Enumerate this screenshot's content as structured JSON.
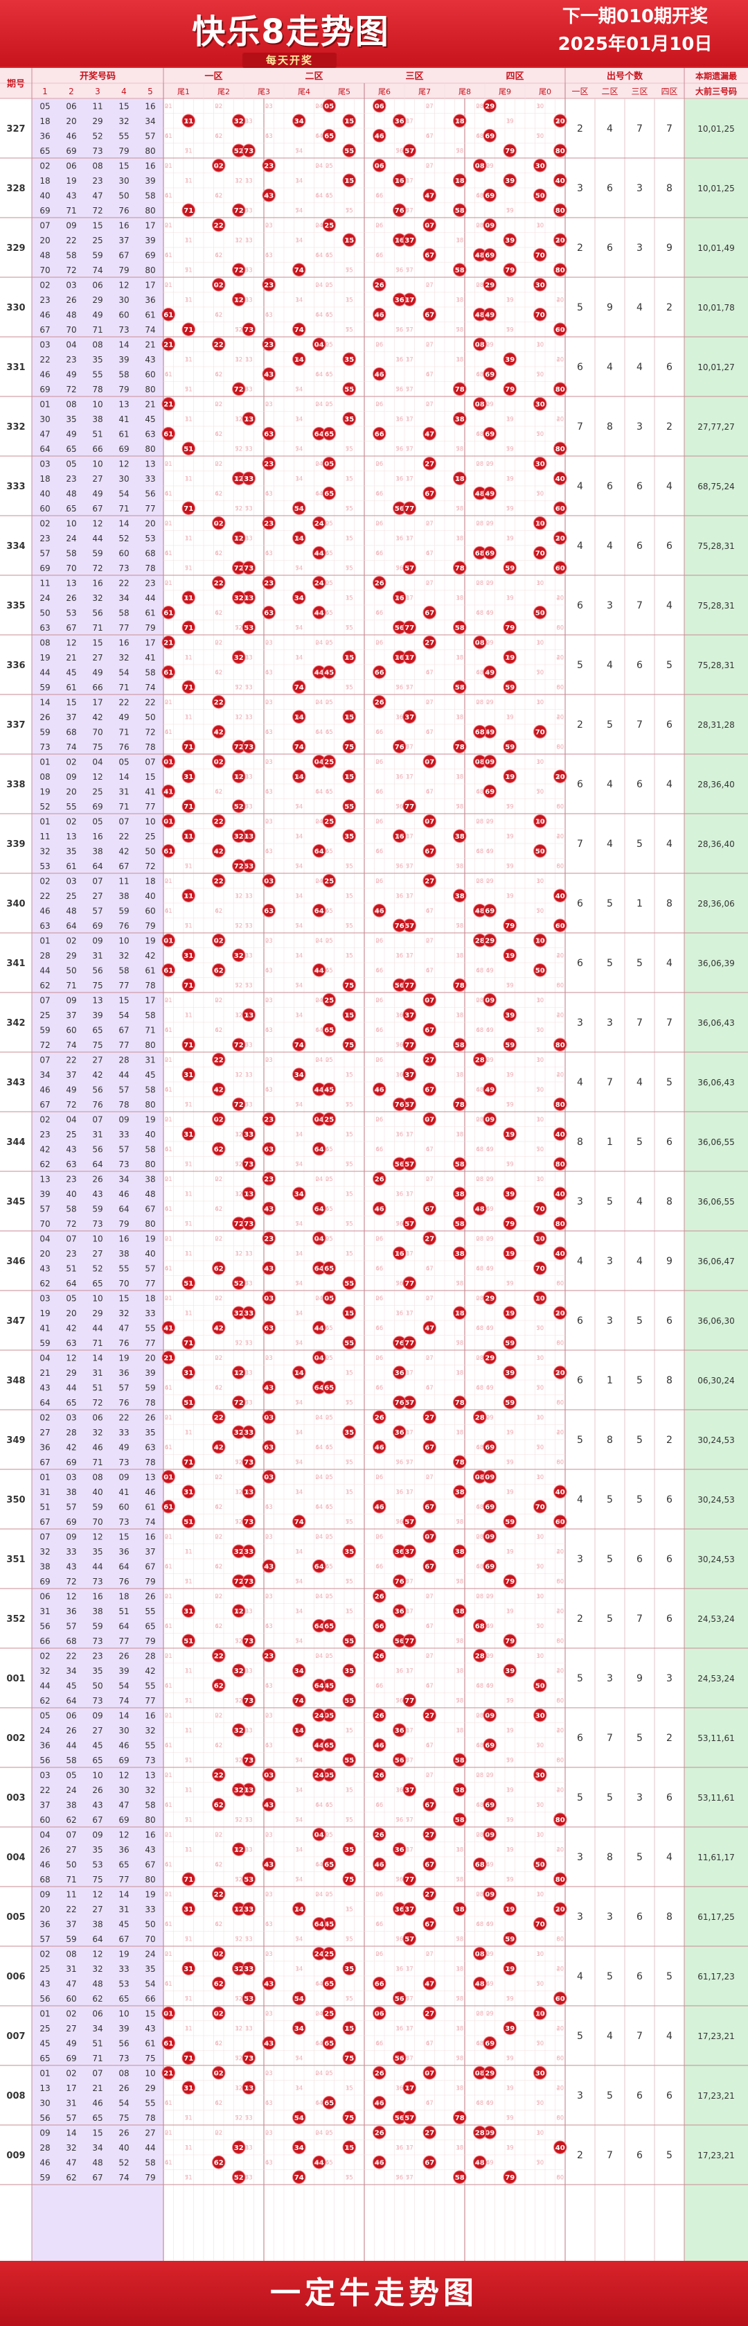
{
  "header": {
    "title": "快乐8走势图",
    "subtitle": "每天开奖",
    "next_line1": "下一期010期开奖",
    "next_line2": "2025年01月10日"
  },
  "footer": {
    "text": "一定牛走势图"
  },
  "colors": {
    "ball": "#c8141c",
    "ball_ring": "#f07a80",
    "stats_bg": "#d6f2d9",
    "draw_bg": "#eae0fb",
    "faint_num": "#f1b7bd",
    "grid_line": "#e6c4c8",
    "header_bg": "#fbe6ea"
  },
  "chart_data": {
    "type": "table",
    "columns": {
      "issue": "期号",
      "draw_group": "开奖号码",
      "draw_cols": [
        "1",
        "2",
        "3",
        "4",
        "5"
      ],
      "zones": [
        "一区",
        "二区",
        "三区",
        "四区"
      ],
      "tails": [
        "尾1",
        "尾2",
        "尾3",
        "尾4",
        "尾5",
        "尾6",
        "尾7",
        "尾8",
        "尾9",
        "尾0"
      ],
      "count_group": "出号个数",
      "count_cols": [
        "一区",
        "二区",
        "三区",
        "四区"
      ],
      "miss_line1": "本期遗漏最",
      "miss_line2": "大前三号码"
    },
    "rows": [
      {
        "issue": "327",
        "draw": [
          5,
          6,
          11,
          15,
          16,
          18,
          20,
          29,
          32,
          34,
          36,
          46,
          52,
          55,
          57,
          65,
          69,
          73,
          79,
          80
        ],
        "counts": [
          2,
          4,
          7,
          7
        ],
        "missing": "10,01,25"
      },
      {
        "issue": "328",
        "draw": [
          2,
          6,
          8,
          15,
          16,
          18,
          19,
          23,
          30,
          39,
          40,
          43,
          47,
          50,
          58,
          69,
          71,
          72,
          76,
          80
        ],
        "counts": [
          3,
          6,
          3,
          8
        ],
        "missing": "10,01,25"
      },
      {
        "issue": "329",
        "draw": [
          7,
          9,
          15,
          16,
          17,
          20,
          22,
          25,
          37,
          39,
          48,
          58,
          59,
          67,
          69,
          70,
          74,
          72,
          79,
          80
        ],
        "counts": [
          2,
          6,
          3,
          9
        ],
        "missing": "10,01,49"
      },
      {
        "issue": "330",
        "draw": [
          2,
          3,
          6,
          12,
          17,
          23,
          26,
          29,
          30,
          36,
          46,
          48,
          49,
          60,
          61,
          67,
          70,
          71,
          73,
          74
        ],
        "counts": [
          5,
          9,
          4,
          2
        ],
        "missing": "10,01,78"
      },
      {
        "issue": "331",
        "draw": [
          3,
          4,
          8,
          14,
          21,
          22,
          23,
          35,
          39,
          43,
          46,
          49,
          55,
          58,
          60,
          69,
          72,
          78,
          79,
          80
        ],
        "counts": [
          6,
          4,
          4,
          6
        ],
        "missing": "10,01,27"
      },
      {
        "issue": "332",
        "draw": [
          1,
          8,
          10,
          13,
          21,
          30,
          35,
          38,
          41,
          45,
          47,
          49,
          51,
          61,
          63,
          64,
          65,
          66,
          69,
          80
        ],
        "counts": [
          7,
          8,
          3,
          2
        ],
        "missing": "27,77,27"
      },
      {
        "issue": "333",
        "draw": [
          3,
          5,
          10,
          12,
          13,
          18,
          23,
          27,
          30,
          33,
          40,
          48,
          49,
          54,
          56,
          60,
          65,
          67,
          71,
          77
        ],
        "counts": [
          4,
          6,
          6,
          4
        ],
        "missing": "68,75,24"
      },
      {
        "issue": "334",
        "draw": [
          2,
          10,
          12,
          14,
          20,
          23,
          24,
          44,
          52,
          53,
          57,
          58,
          59,
          60,
          68,
          69,
          70,
          72,
          73,
          78
        ],
        "counts": [
          4,
          4,
          6,
          6
        ],
        "missing": "75,28,31"
      },
      {
        "issue": "335",
        "draw": [
          11,
          13,
          16,
          22,
          23,
          24,
          26,
          32,
          34,
          44,
          50,
          53,
          56,
          58,
          61,
          63,
          67,
          71,
          77,
          79
        ],
        "counts": [
          6,
          3,
          7,
          4
        ],
        "missing": "75,28,31"
      },
      {
        "issue": "336",
        "draw": [
          8,
          12,
          15,
          16,
          17,
          19,
          21,
          27,
          32,
          41,
          44,
          45,
          49,
          54,
          58,
          59,
          61,
          66,
          71,
          74
        ],
        "counts": [
          5,
          4,
          6,
          5
        ],
        "missing": "75,28,31"
      },
      {
        "issue": "337",
        "draw": [
          14,
          15,
          17,
          22,
          26,
          22,
          37,
          42,
          49,
          50,
          59,
          68,
          70,
          71,
          72,
          73,
          74,
          75,
          76,
          78
        ],
        "counts": [
          2,
          5,
          7,
          6
        ],
        "missing": "28,31,28"
      },
      {
        "issue": "338",
        "draw": [
          1,
          2,
          4,
          5,
          7,
          8,
          9,
          12,
          14,
          15,
          19,
          20,
          25,
          31,
          41,
          52,
          55,
          69,
          71,
          77
        ],
        "counts": [
          6,
          4,
          6,
          4
        ],
        "missing": "28,36,40"
      },
      {
        "issue": "339",
        "draw": [
          1,
          2,
          5,
          7,
          10,
          11,
          13,
          16,
          22,
          25,
          32,
          35,
          38,
          42,
          50,
          53,
          61,
          64,
          67,
          72
        ],
        "counts": [
          7,
          4,
          5,
          4
        ],
        "missing": "28,36,40"
      },
      {
        "issue": "340",
        "draw": [
          2,
          3,
          7,
          11,
          18,
          22,
          25,
          27,
          38,
          40,
          46,
          48,
          57,
          59,
          60,
          63,
          64,
          69,
          76,
          79
        ],
        "counts": [
          6,
          5,
          1,
          8
        ],
        "missing": "28,36,06"
      },
      {
        "issue": "341",
        "draw": [
          1,
          2,
          9,
          10,
          19,
          28,
          29,
          31,
          32,
          42,
          44,
          50,
          56,
          58,
          61,
          62,
          71,
          75,
          77,
          78
        ],
        "counts": [
          6,
          5,
          5,
          4
        ],
        "missing": "36,06,39"
      },
      {
        "issue": "342",
        "draw": [
          7,
          9,
          13,
          15,
          17,
          25,
          37,
          39,
          54,
          58,
          59,
          60,
          65,
          67,
          71,
          72,
          74,
          75,
          77,
          80
        ],
        "counts": [
          3,
          3,
          7,
          7
        ],
        "missing": "36,06,43"
      },
      {
        "issue": "343",
        "draw": [
          7,
          22,
          27,
          28,
          31,
          34,
          37,
          42,
          44,
          45,
          46,
          49,
          56,
          57,
          58,
          67,
          72,
          76,
          78,
          80
        ],
        "counts": [
          4,
          7,
          4,
          5
        ],
        "missing": "36,06,43"
      },
      {
        "issue": "344",
        "draw": [
          2,
          4,
          7,
          9,
          19,
          23,
          25,
          31,
          33,
          40,
          42,
          43,
          56,
          57,
          58,
          62,
          63,
          64,
          73,
          80
        ],
        "counts": [
          8,
          1,
          5,
          6
        ],
        "missing": "36,06,55"
      },
      {
        "issue": "345",
        "draw": [
          13,
          23,
          26,
          34,
          38,
          39,
          40,
          43,
          46,
          48,
          57,
          58,
          59,
          64,
          67,
          70,
          72,
          73,
          79,
          80
        ],
        "counts": [
          3,
          5,
          4,
          8
        ],
        "missing": "36,06,55"
      },
      {
        "issue": "346",
        "draw": [
          4,
          7,
          10,
          16,
          19,
          20,
          23,
          27,
          38,
          40,
          43,
          51,
          52,
          55,
          57,
          62,
          64,
          65,
          70,
          77
        ],
        "counts": [
          4,
          3,
          4,
          9
        ],
        "missing": "36,06,47"
      },
      {
        "issue": "347",
        "draw": [
          3,
          5,
          10,
          15,
          18,
          19,
          20,
          29,
          32,
          33,
          41,
          42,
          44,
          47,
          55,
          59,
          63,
          71,
          76,
          77
        ],
        "counts": [
          6,
          3,
          5,
          6
        ],
        "missing": "36,06,30"
      },
      {
        "issue": "348",
        "draw": [
          4,
          12,
          14,
          19,
          20,
          21,
          29,
          31,
          36,
          39,
          43,
          44,
          51,
          57,
          59,
          64,
          65,
          72,
          76,
          78
        ],
        "counts": [
          6,
          1,
          5,
          8
        ],
        "missing": "06,30,24"
      },
      {
        "issue": "349",
        "draw": [
          2,
          3,
          6,
          22,
          26,
          27,
          28,
          32,
          33,
          35,
          36,
          42,
          46,
          49,
          63,
          67,
          69,
          71,
          73,
          78
        ],
        "counts": [
          5,
          8,
          5,
          2
        ],
        "missing": "30,24,53"
      },
      {
        "issue": "350",
        "draw": [
          1,
          3,
          8,
          9,
          13,
          31,
          38,
          40,
          41,
          46,
          51,
          57,
          59,
          60,
          61,
          67,
          69,
          70,
          73,
          74
        ],
        "counts": [
          4,
          5,
          5,
          6
        ],
        "missing": "30,24,53"
      },
      {
        "issue": "351",
        "draw": [
          7,
          9,
          12,
          15,
          16,
          32,
          33,
          35,
          36,
          37,
          38,
          43,
          44,
          64,
          67,
          69,
          72,
          73,
          76,
          79
        ],
        "counts": [
          3,
          5,
          6,
          6
        ],
        "missing": "30,24,53"
      },
      {
        "issue": "352",
        "draw": [
          6,
          12,
          16,
          18,
          26,
          31,
          36,
          38,
          51,
          55,
          56,
          57,
          59,
          64,
          65,
          66,
          68,
          73,
          77,
          79
        ],
        "counts": [
          2,
          5,
          7,
          6
        ],
        "missing": "24,53,24"
      },
      {
        "issue": "001",
        "draw": [
          2,
          22,
          23,
          26,
          28,
          32,
          34,
          35,
          39,
          42,
          44,
          45,
          50,
          54,
          55,
          62,
          64,
          73,
          74,
          77
        ],
        "counts": [
          5,
          3,
          9,
          3
        ],
        "missing": "24,53,24"
      },
      {
        "issue": "002",
        "draw": [
          5,
          6,
          9,
          14,
          16,
          24,
          26,
          27,
          30,
          32,
          36,
          44,
          45,
          46,
          55,
          56,
          58,
          65,
          69,
          73
        ],
        "counts": [
          6,
          7,
          5,
          2
        ],
        "missing": "53,11,61"
      },
      {
        "issue": "003",
        "draw": [
          3,
          5,
          10,
          12,
          13,
          22,
          24,
          26,
          30,
          32,
          37,
          38,
          43,
          47,
          58,
          60,
          62,
          67,
          69,
          80
        ],
        "counts": [
          5,
          5,
          3,
          6
        ],
        "missing": "53,11,61"
      },
      {
        "issue": "004",
        "draw": [
          4,
          7,
          9,
          12,
          16,
          26,
          27,
          35,
          36,
          43,
          46,
          50,
          53,
          65,
          67,
          68,
          71,
          75,
          77,
          80
        ],
        "counts": [
          3,
          8,
          5,
          4
        ],
        "missing": "11,61,17"
      },
      {
        "issue": "005",
        "draw": [
          9,
          11,
          12,
          14,
          19,
          20,
          22,
          27,
          31,
          33,
          36,
          37,
          38,
          45,
          50,
          57,
          59,
          64,
          67,
          70
        ],
        "counts": [
          3,
          3,
          6,
          8
        ],
        "missing": "61,17,25"
      },
      {
        "issue": "006",
        "draw": [
          2,
          8,
          12,
          19,
          24,
          25,
          31,
          32,
          33,
          35,
          43,
          47,
          48,
          53,
          54,
          56,
          60,
          62,
          65,
          66
        ],
        "counts": [
          4,
          5,
          6,
          5
        ],
        "missing": "61,17,23"
      },
      {
        "issue": "007",
        "draw": [
          1,
          2,
          6,
          10,
          15,
          25,
          27,
          34,
          39,
          43,
          45,
          49,
          51,
          56,
          61,
          65,
          69,
          71,
          73,
          75
        ],
        "counts": [
          5,
          4,
          7,
          4
        ],
        "missing": "17,23,21"
      },
      {
        "issue": "008",
        "draw": [
          1,
          2,
          7,
          8,
          10,
          13,
          17,
          21,
          26,
          29,
          30,
          31,
          46,
          54,
          55,
          56,
          57,
          65,
          75,
          78
        ],
        "counts": [
          3,
          5,
          6,
          6
        ],
        "missing": "17,23,21"
      },
      {
        "issue": "009",
        "draw": [
          9,
          14,
          15,
          26,
          27,
          28,
          32,
          34,
          40,
          44,
          46,
          47,
          48,
          52,
          58,
          59,
          62,
          67,
          74,
          79
        ],
        "counts": [
          2,
          7,
          6,
          5
        ],
        "missing": "17,23,21"
      }
    ]
  }
}
